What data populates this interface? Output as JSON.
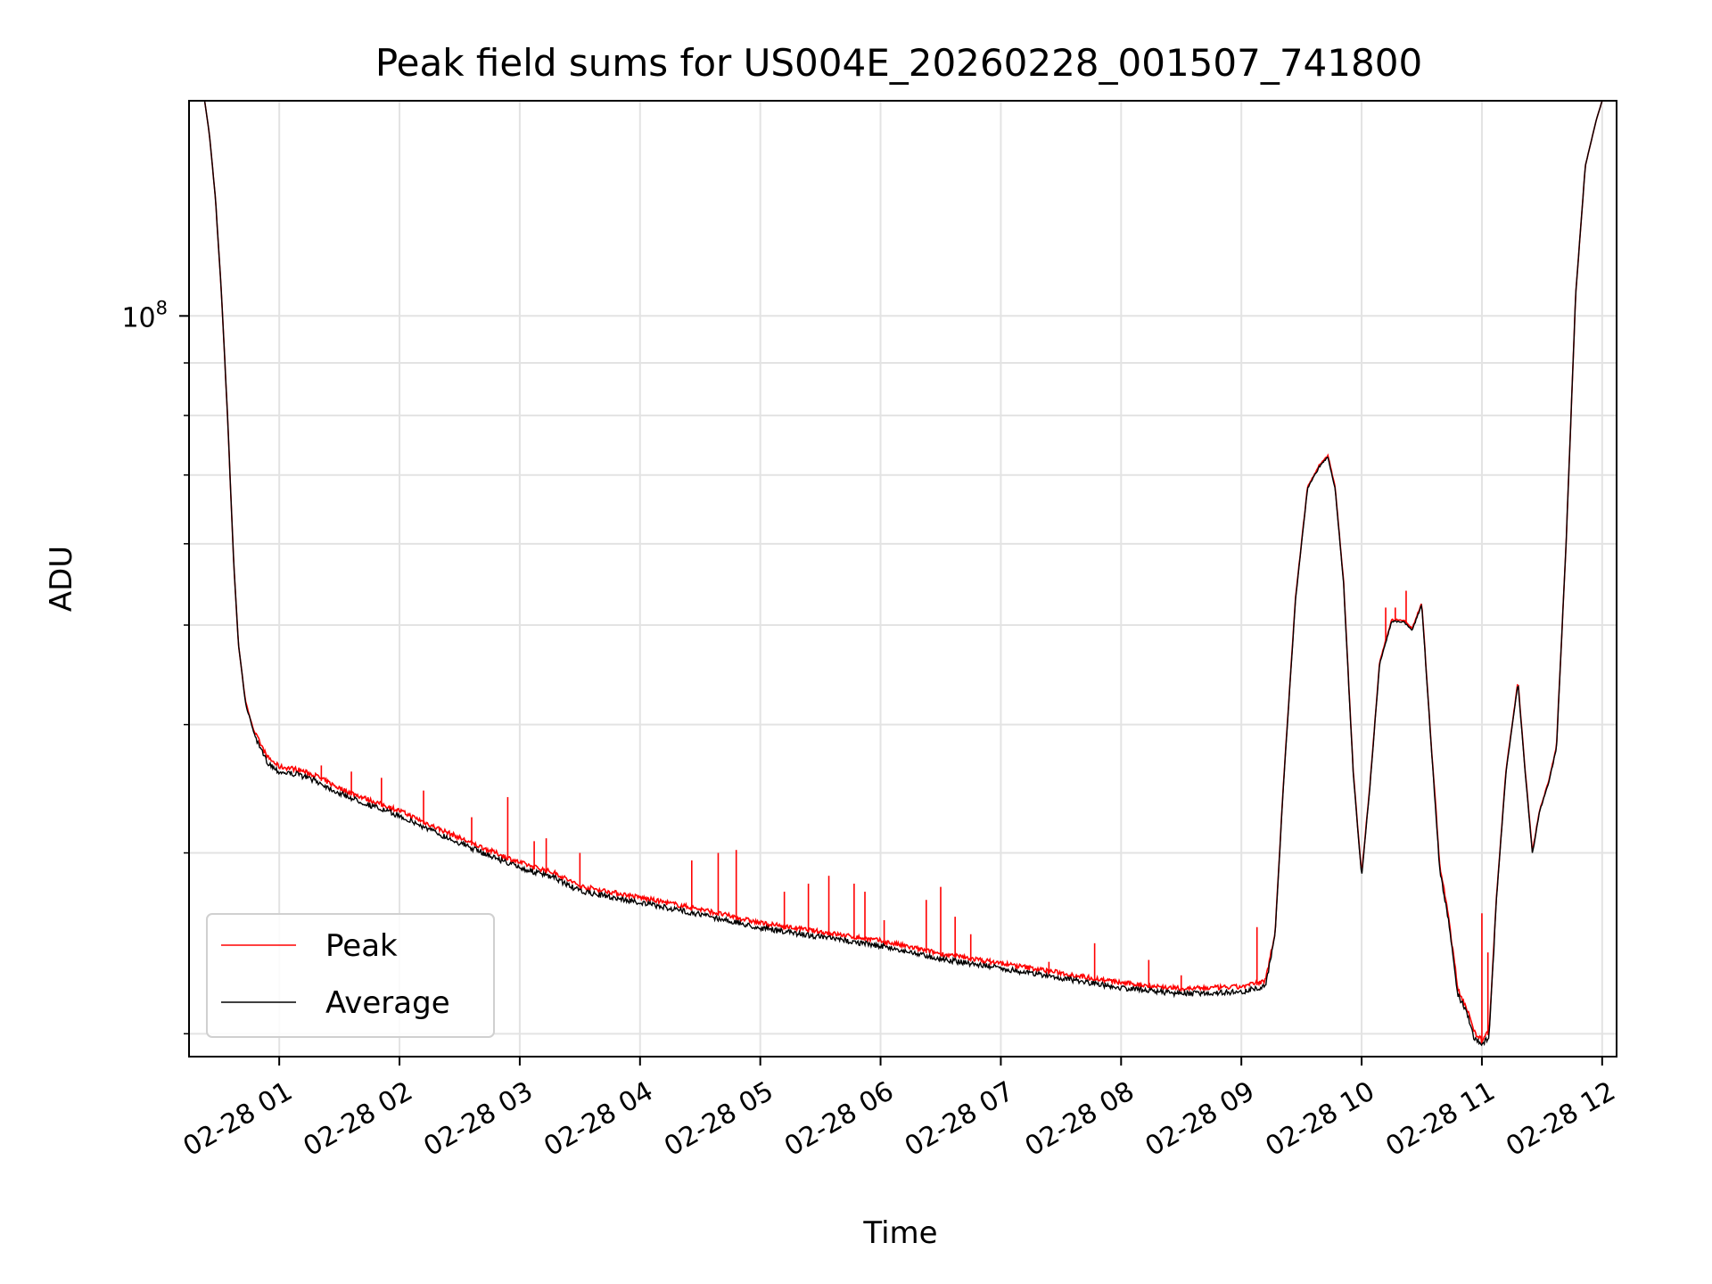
{
  "chart_data": {
    "type": "line",
    "title": "Peak field sums for US004E_20260228_001507_741800",
    "xlabel": "Time",
    "ylabel": "ADU",
    "yscale": "log",
    "ylim": [
      19000000,
      162000000
    ],
    "xlim_hours": [
      0.25,
      12.12
    ],
    "y_major_tick": {
      "value": 100000000,
      "base": "10",
      "exp": "8"
    },
    "y_minor_ticks": [
      20000000,
      30000000,
      40000000,
      50000000,
      60000000,
      70000000,
      80000000,
      90000000
    ],
    "x_ticks": [
      {
        "hours": 1,
        "label": "02-28 01"
      },
      {
        "hours": 2,
        "label": "02-28 02"
      },
      {
        "hours": 3,
        "label": "02-28 03"
      },
      {
        "hours": 4,
        "label": "02-28 04"
      },
      {
        "hours": 5,
        "label": "02-28 05"
      },
      {
        "hours": 6,
        "label": "02-28 06"
      },
      {
        "hours": 7,
        "label": "02-28 07"
      },
      {
        "hours": 8,
        "label": "02-28 08"
      },
      {
        "hours": 9,
        "label": "02-28 09"
      },
      {
        "hours": 10,
        "label": "02-28 10"
      },
      {
        "hours": 11,
        "label": "02-28 11"
      },
      {
        "hours": 12,
        "label": "02-28 12"
      }
    ],
    "grid": true,
    "legend_position": "lower-left",
    "series": [
      {
        "name": "Peak",
        "color": "#ff0000"
      },
      {
        "name": "Average",
        "color": "#000000"
      }
    ],
    "average_anchor_points": [
      [
        0.38,
        162000000
      ],
      [
        0.42,
        150000000
      ],
      [
        0.47,
        130000000
      ],
      [
        0.52,
        105000000
      ],
      [
        0.57,
        80000000
      ],
      [
        0.62,
        58000000
      ],
      [
        0.66,
        48000000
      ],
      [
        0.72,
        42000000
      ],
      [
        0.8,
        39000000
      ],
      [
        0.9,
        37000000
      ],
      [
        1.0,
        36200000
      ],
      [
        1.15,
        36000000
      ],
      [
        1.3,
        35500000
      ],
      [
        1.5,
        34500000
      ],
      [
        1.75,
        33600000
      ],
      [
        2.0,
        32800000
      ],
      [
        2.3,
        31600000
      ],
      [
        2.6,
        30500000
      ],
      [
        3.0,
        29200000
      ],
      [
        3.3,
        28500000
      ],
      [
        3.5,
        27700000
      ],
      [
        4.0,
        27000000
      ],
      [
        4.5,
        26300000
      ],
      [
        5.0,
        25500000
      ],
      [
        5.5,
        25000000
      ],
      [
        6.0,
        24500000
      ],
      [
        6.5,
        23800000
      ],
      [
        7.0,
        23300000
      ],
      [
        7.5,
        22800000
      ],
      [
        8.0,
        22300000
      ],
      [
        8.5,
        22000000
      ],
      [
        9.0,
        22100000
      ],
      [
        9.2,
        22400000
      ],
      [
        9.28,
        25000000
      ],
      [
        9.35,
        35000000
      ],
      [
        9.45,
        53000000
      ],
      [
        9.55,
        68000000
      ],
      [
        9.65,
        71500000
      ],
      [
        9.72,
        73000000
      ],
      [
        9.78,
        68000000
      ],
      [
        9.85,
        55000000
      ],
      [
        9.93,
        36000000
      ],
      [
        10.0,
        28500000
      ],
      [
        10.07,
        35000000
      ],
      [
        10.15,
        46000000
      ],
      [
        10.25,
        50500000
      ],
      [
        10.35,
        50500000
      ],
      [
        10.42,
        49500000
      ],
      [
        10.5,
        52500000
      ],
      [
        10.58,
        38000000
      ],
      [
        10.65,
        29000000
      ],
      [
        10.72,
        26000000
      ],
      [
        10.8,
        22000000
      ],
      [
        10.88,
        21000000
      ],
      [
        10.93,
        20000000
      ],
      [
        11.0,
        19600000
      ],
      [
        11.06,
        20000000
      ],
      [
        11.12,
        27000000
      ],
      [
        11.2,
        36000000
      ],
      [
        11.3,
        44000000
      ],
      [
        11.36,
        36000000
      ],
      [
        11.42,
        30000000
      ],
      [
        11.48,
        33000000
      ],
      [
        11.55,
        35000000
      ],
      [
        11.62,
        38000000
      ],
      [
        11.7,
        60000000
      ],
      [
        11.78,
        105000000
      ],
      [
        11.86,
        140000000
      ],
      [
        11.95,
        155000000
      ],
      [
        12.0,
        162000000
      ]
    ],
    "peak_spikes": [
      [
        1.35,
        36500000
      ],
      [
        1.6,
        36000000
      ],
      [
        1.85,
        35500000
      ],
      [
        2.2,
        34500000
      ],
      [
        2.6,
        32500000
      ],
      [
        2.9,
        34000000
      ],
      [
        3.12,
        30800000
      ],
      [
        3.22,
        31000000
      ],
      [
        3.5,
        30000000
      ],
      [
        4.43,
        29500000
      ],
      [
        4.65,
        30000000
      ],
      [
        4.8,
        30200000
      ],
      [
        5.2,
        27500000
      ],
      [
        5.4,
        28000000
      ],
      [
        5.57,
        28500000
      ],
      [
        5.78,
        28000000
      ],
      [
        5.87,
        27500000
      ],
      [
        6.03,
        25800000
      ],
      [
        6.38,
        27000000
      ],
      [
        6.5,
        27800000
      ],
      [
        6.62,
        26000000
      ],
      [
        6.75,
        25000000
      ],
      [
        6.9,
        23300000
      ],
      [
        7.4,
        23500000
      ],
      [
        7.78,
        24500000
      ],
      [
        8.23,
        23600000
      ],
      [
        8.5,
        22800000
      ],
      [
        9.13,
        25400000
      ],
      [
        10.2,
        52000000
      ],
      [
        10.28,
        52000000
      ],
      [
        10.37,
        54000000
      ],
      [
        11.0,
        26200000
      ],
      [
        11.05,
        24000000
      ]
    ]
  }
}
